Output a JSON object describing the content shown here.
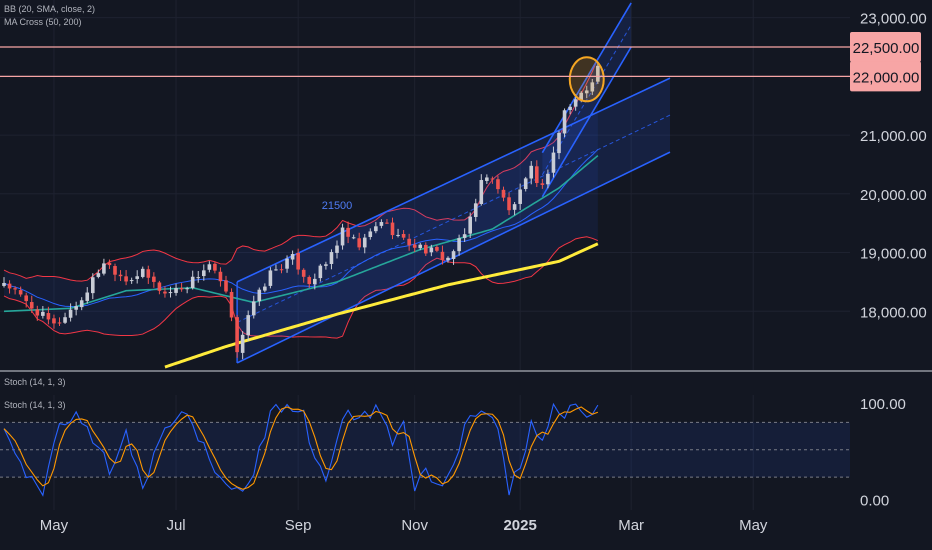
{
  "colors": {
    "background": "#131722",
    "grid": "#1e2230",
    "axis_text": "#d1d4dc",
    "indicator_text": "#b2b5be",
    "up_candle": "#c8ccd6",
    "down_candle": "#ef5350",
    "bb_bands": "#f23645",
    "bb_basis": "#2962ff",
    "bb_fill": "#2962ff",
    "ma_fast": "#26a69a",
    "ma_slow": "#ffeb3b",
    "channel": "#2962ff",
    "level_lines": "#f7a5a5",
    "level_label_bg": "#f7a5a5",
    "level_label_text": "#131722",
    "highlight_circle": "#f5a623",
    "stoch_k": "#2962ff",
    "stoch_d": "#ff9800",
    "stoch_band": "#2962ff",
    "annotation": "#4f7cf5"
  },
  "indicators": {
    "price_legend": [
      "BB (20, SMA, close, 2)",
      "MA Cross (50, 200)"
    ],
    "stoch_label_top": "Stoch (14, 1, 3)",
    "stoch_label": "Stoch (14, 1, 3)"
  },
  "chart_data": [
    {
      "type": "candlestick",
      "y_axis_ticks": [
        "18,000.00",
        "19,000.00",
        "20,000.00",
        "21,000.00",
        "23,000.00"
      ],
      "ylim": [
        17000,
        23300
      ],
      "x_axis_labels": [
        "May",
        "Jul",
        "Sep",
        "Nov",
        "2025",
        "Mar",
        "May"
      ],
      "price_levels": [
        {
          "value": 22500,
          "label": "22,500.00"
        },
        {
          "value": 22000,
          "label": "22,000.00"
        }
      ],
      "annotations": [
        {
          "text": "21500"
        }
      ],
      "grid": true,
      "anchors": [
        {
          "t": 0,
          "close": 18500
        },
        {
          "t": 4,
          "close": 18150
        },
        {
          "t": 9,
          "close": 17750
        },
        {
          "t": 14,
          "close": 18200
        },
        {
          "t": 18,
          "close": 18850
        },
        {
          "t": 22,
          "close": 18550
        },
        {
          "t": 25,
          "close": 18650
        },
        {
          "t": 29,
          "close": 18300
        },
        {
          "t": 33,
          "close": 18450
        },
        {
          "t": 37,
          "close": 18800
        },
        {
          "t": 40,
          "close": 18300
        },
        {
          "t": 42,
          "close": 17350
        },
        {
          "t": 44,
          "close": 17950
        },
        {
          "t": 48,
          "close": 18650
        },
        {
          "t": 52,
          "close": 18900
        },
        {
          "t": 55,
          "close": 18500
        },
        {
          "t": 58,
          "close": 18800
        },
        {
          "t": 61,
          "close": 19350
        },
        {
          "t": 64,
          "close": 19100
        },
        {
          "t": 68,
          "close": 19550
        },
        {
          "t": 72,
          "close": 19200
        },
        {
          "t": 76,
          "close": 19050
        },
        {
          "t": 80,
          "close": 18900
        },
        {
          "t": 83,
          "close": 19300
        },
        {
          "t": 86,
          "close": 20200
        },
        {
          "t": 88,
          "close": 20300
        },
        {
          "t": 91,
          "close": 19700
        },
        {
          "t": 93,
          "close": 20000
        },
        {
          "t": 95,
          "close": 20400
        },
        {
          "t": 97,
          "close": 20100
        },
        {
          "t": 99,
          "close": 20700
        },
        {
          "t": 101,
          "close": 21400
        },
        {
          "t": 103,
          "close": 21600
        },
        {
          "t": 105,
          "close": 21800
        },
        {
          "t": 107,
          "close": 22150
        }
      ],
      "ma_slow": [
        {
          "t": 29,
          "value": 17050
        },
        {
          "t": 40,
          "value": 17400
        },
        {
          "t": 60,
          "value": 17950
        },
        {
          "t": 80,
          "value": 18450
        },
        {
          "t": 100,
          "value": 18850
        },
        {
          "t": 107,
          "value": 19150
        }
      ],
      "ma_fast": [
        {
          "t": 0,
          "value": 18000
        },
        {
          "t": 12,
          "value": 18050
        },
        {
          "t": 22,
          "value": 18350
        },
        {
          "t": 34,
          "value": 18400
        },
        {
          "t": 45,
          "value": 18150
        },
        {
          "t": 60,
          "value": 18500
        },
        {
          "t": 75,
          "value": 19050
        },
        {
          "t": 88,
          "value": 19400
        },
        {
          "t": 100,
          "value": 20100
        },
        {
          "t": 107,
          "value": 20650
        }
      ],
      "channels": [
        {
          "start": {
            "t": 42,
            "value": 18500
          },
          "end": {
            "t": 120,
            "value": 21970
          }
        },
        {
          "start": {
            "t": 42,
            "value": 17120
          },
          "end": {
            "t": 120,
            "value": 20710
          }
        },
        {
          "start": {
            "t": 97,
            "value": 20700
          },
          "end": {
            "t": 113,
            "value": 23250
          }
        },
        {
          "start": {
            "t": 97,
            "value": 19950
          },
          "end": {
            "t": 113,
            "value": 22500
          }
        }
      ],
      "highlight": {
        "t": 105,
        "value": 21950
      }
    },
    {
      "type": "line",
      "name": "Stoch (14, 1, 3)",
      "y_axis_ticks": [
        "100.00",
        "0.00"
      ],
      "ylim": [
        -5,
        110
      ],
      "band": [
        20,
        80
      ],
      "anchors": [
        {
          "t": 0,
          "value": 75
        },
        {
          "t": 2,
          "value": 45
        },
        {
          "t": 4,
          "value": 18
        },
        {
          "t": 7,
          "value": 8
        },
        {
          "t": 10,
          "value": 80
        },
        {
          "t": 13,
          "value": 92
        },
        {
          "t": 16,
          "value": 60
        },
        {
          "t": 19,
          "value": 30
        },
        {
          "t": 22,
          "value": 65
        },
        {
          "t": 25,
          "value": 12
        },
        {
          "t": 28,
          "value": 58
        },
        {
          "t": 31,
          "value": 88
        },
        {
          "t": 34,
          "value": 80
        },
        {
          "t": 37,
          "value": 40
        },
        {
          "t": 39,
          "value": 18
        },
        {
          "t": 42,
          "value": 5
        },
        {
          "t": 45,
          "value": 25
        },
        {
          "t": 48,
          "value": 90
        },
        {
          "t": 51,
          "value": 95
        },
        {
          "t": 54,
          "value": 92
        },
        {
          "t": 56,
          "value": 35
        },
        {
          "t": 58,
          "value": 20
        },
        {
          "t": 61,
          "value": 88
        },
        {
          "t": 64,
          "value": 82
        },
        {
          "t": 67,
          "value": 92
        },
        {
          "t": 70,
          "value": 60
        },
        {
          "t": 72,
          "value": 78
        },
        {
          "t": 74,
          "value": 8
        },
        {
          "t": 76,
          "value": 30
        },
        {
          "t": 78,
          "value": 12
        },
        {
          "t": 80,
          "value": 20
        },
        {
          "t": 82,
          "value": 55
        },
        {
          "t": 84,
          "value": 92
        },
        {
          "t": 87,
          "value": 95
        },
        {
          "t": 89,
          "value": 70
        },
        {
          "t": 91,
          "value": 8
        },
        {
          "t": 93,
          "value": 30
        },
        {
          "t": 95,
          "value": 80
        },
        {
          "t": 97,
          "value": 60
        },
        {
          "t": 99,
          "value": 95
        },
        {
          "t": 101,
          "value": 92
        },
        {
          "t": 103,
          "value": 98
        },
        {
          "t": 105,
          "value": 80
        },
        {
          "t": 107,
          "value": 92
        }
      ]
    }
  ]
}
